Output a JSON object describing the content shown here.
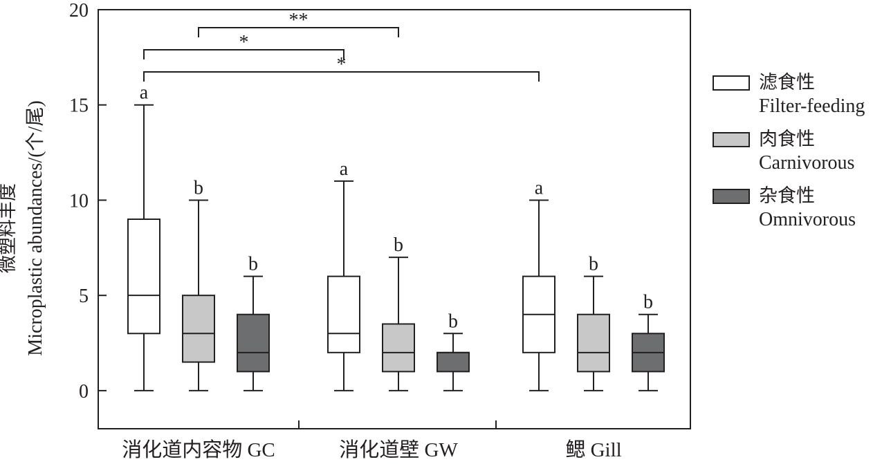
{
  "chart_data": {
    "type": "box",
    "ylabel_cn": "微塑料丰度",
    "ylabel_en": "Microplastic abundances/(个/尾)",
    "ylim": [
      -2,
      20
    ],
    "yticks": [
      0,
      5,
      10,
      15,
      20
    ],
    "grid": false,
    "legend_placement": "right",
    "categories": [
      "消化道内容物 GC",
      "消化道壁 GW",
      "鳃 Gill"
    ],
    "series": [
      {
        "name_cn": "滤食性",
        "name_en": "Filter-feeding",
        "color": "#ffffff",
        "boxes": [
          {
            "min": 0,
            "q1": 3,
            "median": 5,
            "q3": 9,
            "max": 15,
            "letter": "a"
          },
          {
            "min": 0,
            "q1": 2,
            "median": 3,
            "q3": 6,
            "max": 11,
            "letter": "a"
          },
          {
            "min": 0,
            "q1": 2,
            "median": 4,
            "q3": 6,
            "max": 10,
            "letter": "a"
          }
        ]
      },
      {
        "name_cn": "肉食性",
        "name_en": "Carnivorous",
        "color": "#c8c8c9",
        "boxes": [
          {
            "min": 0,
            "q1": 1.5,
            "median": 3,
            "q3": 5,
            "max": 10,
            "letter": "b"
          },
          {
            "min": 0,
            "q1": 1,
            "median": 2,
            "q3": 3.5,
            "max": 7,
            "letter": "b"
          },
          {
            "min": 0,
            "q1": 1,
            "median": 2,
            "q3": 4,
            "max": 6,
            "letter": "b"
          }
        ]
      },
      {
        "name_cn": "杂食性",
        "name_en": "Omnivorous",
        "color": "#6d6e70",
        "boxes": [
          {
            "min": 0,
            "q1": 1,
            "median": 2,
            "q3": 4,
            "max": 6,
            "letter": "b"
          },
          {
            "min": 0,
            "q1": 1,
            "median": 2,
            "q3": 2,
            "max": 3,
            "letter": "b"
          },
          {
            "min": 0,
            "q1": 1,
            "median": 2,
            "q3": 3,
            "max": 4,
            "letter": "b"
          }
        ]
      }
    ],
    "significance": [
      {
        "from": [
          0,
          1
        ],
        "to": [
          1,
          1
        ],
        "label": "**"
      },
      {
        "from": [
          0,
          0
        ],
        "to": [
          1,
          0
        ],
        "label": "*"
      },
      {
        "from": [
          0,
          0
        ],
        "to": [
          2,
          0
        ],
        "label": "*"
      }
    ]
  }
}
